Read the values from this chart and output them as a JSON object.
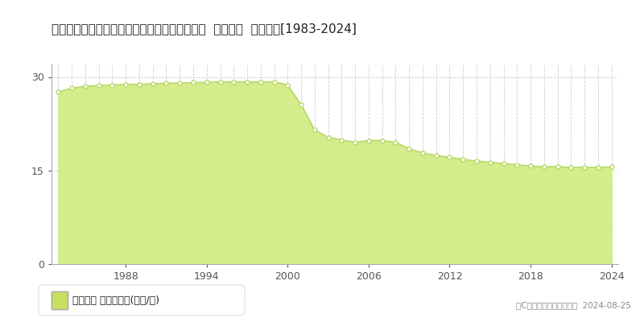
{
  "title": "新潟県上越市西城町３丁目字東二ノ辻１３番７  地価公示  地価推移[1983-2024]",
  "years": [
    1983,
    1984,
    1985,
    1986,
    1987,
    1988,
    1989,
    1990,
    1991,
    1992,
    1993,
    1994,
    1995,
    1996,
    1997,
    1998,
    1999,
    2000,
    2001,
    2002,
    2003,
    2004,
    2005,
    2006,
    2007,
    2008,
    2009,
    2010,
    2011,
    2012,
    2013,
    2014,
    2015,
    2016,
    2017,
    2018,
    2019,
    2020,
    2021,
    2022,
    2023,
    2024
  ],
  "values": [
    27.6,
    28.2,
    28.5,
    28.6,
    28.7,
    28.8,
    28.8,
    28.9,
    29.0,
    29.0,
    29.1,
    29.1,
    29.2,
    29.2,
    29.2,
    29.2,
    29.2,
    28.7,
    25.5,
    21.5,
    20.3,
    19.9,
    19.5,
    19.8,
    19.8,
    19.5,
    18.5,
    17.8,
    17.4,
    17.1,
    16.8,
    16.5,
    16.3,
    16.1,
    15.9,
    15.7,
    15.6,
    15.6,
    15.5,
    15.5,
    15.5,
    15.6
  ],
  "line_color": "#b8d96a",
  "fill_color": "#d4ed8a",
  "marker_color": "#ffffff",
  "marker_edge_color": "#b8d96a",
  "background_color": "#ffffff",
  "grid_color": "#cccccc",
  "yticks": [
    0,
    15,
    30
  ],
  "ylim": [
    0,
    32
  ],
  "xlim_start": 1982.5,
  "xlim_end": 2024.5,
  "xtick_years": [
    1988,
    1994,
    2000,
    2006,
    2012,
    2018,
    2024
  ],
  "legend_label": "地価公示 平均坪単価(万円/坪)",
  "legend_marker_color": "#c8e060",
  "copyright_text": "（C）土地価格ドットコム  2024-08-25",
  "title_fontsize": 11,
  "axis_fontsize": 9,
  "legend_fontsize": 9
}
